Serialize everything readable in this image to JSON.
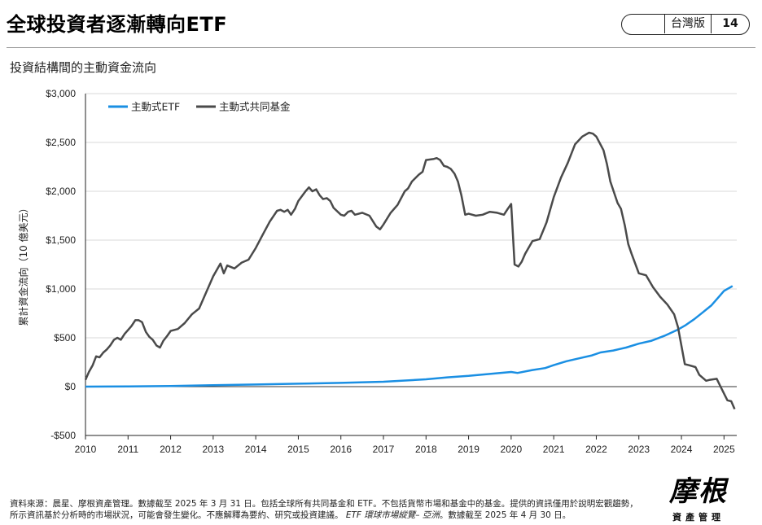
{
  "header": {
    "title": "全球投資者逐漸轉向ETF",
    "badge_label": "台灣版",
    "page_number": "14"
  },
  "subtitle": "投資結構間的主動資金流向",
  "footnote": {
    "line1": "資料來源：晨星、摩根資產管理。數據截至 2025 年 3 月 31 日。包括全球所有共同基金和 ETF。不包括貨幣市場和基金中的基金。提供的資訊僅用於說明宏觀趨勢，",
    "line2_a": "所示資訊基於分析時的市場狀況，可能會發生變化。不應解釋為要約、研究或投資建議。",
    "line2_em": "ETF 環球市場縱覽– 亞洲",
    "line2_b": "。數據截至 2025 年 4 月 30 日。"
  },
  "logo": {
    "main": "摩根",
    "sub": "資產管理"
  },
  "chart_data": {
    "type": "line",
    "ylabel": "累計資金流向（10 億美元）",
    "xlabel": "",
    "ylim": [
      -500,
      3000
    ],
    "xlim": [
      2010.0,
      2025.3
    ],
    "yticks": [
      -500,
      0,
      500,
      1000,
      1500,
      2000,
      2500,
      3000
    ],
    "ytick_labels": [
      "-$500",
      "$0",
      "$500",
      "$1,000",
      "$1,500",
      "$2,000",
      "$2,500",
      "$3,000"
    ],
    "xticks": [
      2010,
      2011,
      2012,
      2013,
      2014,
      2015,
      2016,
      2017,
      2018,
      2019,
      2020,
      2021,
      2022,
      2023,
      2024,
      2025
    ],
    "xtick_labels": [
      "2010",
      "2011",
      "2012",
      "2013",
      "2014",
      "2015",
      "2016",
      "2017",
      "2018",
      "2019",
      "2020",
      "2021",
      "2022",
      "2023",
      "2024",
      "2025"
    ],
    "grid": "horizontal",
    "legend_position": "top-left",
    "series": [
      {
        "name": "主動式ETF",
        "color": "#1a8fe3",
        "points": [
          [
            2010.0,
            0
          ],
          [
            2011.0,
            2
          ],
          [
            2012.0,
            7
          ],
          [
            2013.0,
            15
          ],
          [
            2014.0,
            22
          ],
          [
            2015.0,
            30
          ],
          [
            2016.0,
            38
          ],
          [
            2017.0,
            50
          ],
          [
            2018.0,
            75
          ],
          [
            2018.5,
            95
          ],
          [
            2019.0,
            110
          ],
          [
            2019.5,
            130
          ],
          [
            2020.0,
            150
          ],
          [
            2020.15,
            140
          ],
          [
            2020.5,
            170
          ],
          [
            2020.8,
            190
          ],
          [
            2021.0,
            220
          ],
          [
            2021.3,
            260
          ],
          [
            2021.6,
            290
          ],
          [
            2021.9,
            320
          ],
          [
            2022.1,
            350
          ],
          [
            2022.4,
            370
          ],
          [
            2022.7,
            400
          ],
          [
            2023.0,
            440
          ],
          [
            2023.3,
            470
          ],
          [
            2023.6,
            520
          ],
          [
            2023.9,
            580
          ],
          [
            2024.1,
            630
          ],
          [
            2024.3,
            690
          ],
          [
            2024.5,
            760
          ],
          [
            2024.7,
            830
          ],
          [
            2024.9,
            930
          ],
          [
            2025.0,
            980
          ],
          [
            2025.2,
            1030
          ]
        ]
      },
      {
        "name": "主動式共同基金",
        "color": "#4a4a4a",
        "points": [
          [
            2010.0,
            70
          ],
          [
            2010.08,
            150
          ],
          [
            2010.17,
            220
          ],
          [
            2010.25,
            310
          ],
          [
            2010.33,
            300
          ],
          [
            2010.42,
            350
          ],
          [
            2010.5,
            380
          ],
          [
            2010.58,
            420
          ],
          [
            2010.67,
            480
          ],
          [
            2010.75,
            500
          ],
          [
            2010.83,
            480
          ],
          [
            2010.92,
            540
          ],
          [
            2011.0,
            580
          ],
          [
            2011.08,
            620
          ],
          [
            2011.17,
            680
          ],
          [
            2011.25,
            680
          ],
          [
            2011.33,
            660
          ],
          [
            2011.42,
            560
          ],
          [
            2011.5,
            510
          ],
          [
            2011.58,
            480
          ],
          [
            2011.67,
            420
          ],
          [
            2011.75,
            400
          ],
          [
            2011.83,
            470
          ],
          [
            2011.92,
            520
          ],
          [
            2012.0,
            570
          ],
          [
            2012.17,
            590
          ],
          [
            2012.33,
            650
          ],
          [
            2012.5,
            740
          ],
          [
            2012.67,
            800
          ],
          [
            2012.83,
            960
          ],
          [
            2013.0,
            1130
          ],
          [
            2013.17,
            1260
          ],
          [
            2013.25,
            1160
          ],
          [
            2013.33,
            1240
          ],
          [
            2013.5,
            1210
          ],
          [
            2013.67,
            1270
          ],
          [
            2013.83,
            1300
          ],
          [
            2014.0,
            1420
          ],
          [
            2014.17,
            1560
          ],
          [
            2014.33,
            1690
          ],
          [
            2014.5,
            1800
          ],
          [
            2014.58,
            1810
          ],
          [
            2014.67,
            1790
          ],
          [
            2014.75,
            1810
          ],
          [
            2014.83,
            1760
          ],
          [
            2014.92,
            1820
          ],
          [
            2015.0,
            1900
          ],
          [
            2015.17,
            2000
          ],
          [
            2015.25,
            2040
          ],
          [
            2015.33,
            2000
          ],
          [
            2015.42,
            2020
          ],
          [
            2015.5,
            1960
          ],
          [
            2015.58,
            1920
          ],
          [
            2015.67,
            1930
          ],
          [
            2015.75,
            1900
          ],
          [
            2015.83,
            1830
          ],
          [
            2016.0,
            1760
          ],
          [
            2016.08,
            1750
          ],
          [
            2016.17,
            1790
          ],
          [
            2016.25,
            1800
          ],
          [
            2016.33,
            1760
          ],
          [
            2016.5,
            1780
          ],
          [
            2016.67,
            1750
          ],
          [
            2016.83,
            1640
          ],
          [
            2016.92,
            1610
          ],
          [
            2017.0,
            1660
          ],
          [
            2017.17,
            1780
          ],
          [
            2017.33,
            1860
          ],
          [
            2017.5,
            2000
          ],
          [
            2017.58,
            2030
          ],
          [
            2017.67,
            2100
          ],
          [
            2017.83,
            2170
          ],
          [
            2017.92,
            2200
          ],
          [
            2018.0,
            2320
          ],
          [
            2018.17,
            2330
          ],
          [
            2018.25,
            2340
          ],
          [
            2018.33,
            2320
          ],
          [
            2018.42,
            2260
          ],
          [
            2018.5,
            2250
          ],
          [
            2018.58,
            2230
          ],
          [
            2018.67,
            2180
          ],
          [
            2018.75,
            2100
          ],
          [
            2018.83,
            1960
          ],
          [
            2018.92,
            1760
          ],
          [
            2019.0,
            1770
          ],
          [
            2019.17,
            1750
          ],
          [
            2019.33,
            1760
          ],
          [
            2019.5,
            1790
          ],
          [
            2019.67,
            1780
          ],
          [
            2019.83,
            1760
          ],
          [
            2019.92,
            1820
          ],
          [
            2020.0,
            1870
          ],
          [
            2020.08,
            1250
          ],
          [
            2020.17,
            1230
          ],
          [
            2020.25,
            1280
          ],
          [
            2020.33,
            1360
          ],
          [
            2020.5,
            1490
          ],
          [
            2020.67,
            1510
          ],
          [
            2020.83,
            1680
          ],
          [
            2021.0,
            1940
          ],
          [
            2021.17,
            2140
          ],
          [
            2021.33,
            2290
          ],
          [
            2021.5,
            2480
          ],
          [
            2021.67,
            2560
          ],
          [
            2021.83,
            2600
          ],
          [
            2021.92,
            2590
          ],
          [
            2022.0,
            2560
          ],
          [
            2022.17,
            2420
          ],
          [
            2022.25,
            2280
          ],
          [
            2022.33,
            2100
          ],
          [
            2022.5,
            1880
          ],
          [
            2022.58,
            1820
          ],
          [
            2022.67,
            1650
          ],
          [
            2022.75,
            1460
          ],
          [
            2022.83,
            1360
          ],
          [
            2023.0,
            1160
          ],
          [
            2023.17,
            1140
          ],
          [
            2023.33,
            1020
          ],
          [
            2023.5,
            920
          ],
          [
            2023.67,
            840
          ],
          [
            2023.83,
            740
          ],
          [
            2023.92,
            610
          ],
          [
            2024.0,
            420
          ],
          [
            2024.08,
            230
          ],
          [
            2024.17,
            220
          ],
          [
            2024.33,
            200
          ],
          [
            2024.42,
            120
          ],
          [
            2024.58,
            60
          ],
          [
            2024.67,
            70
          ],
          [
            2024.83,
            80
          ],
          [
            2024.92,
            0
          ],
          [
            2025.0,
            -70
          ],
          [
            2025.08,
            -140
          ],
          [
            2025.17,
            -150
          ],
          [
            2025.25,
            -230
          ]
        ]
      }
    ]
  }
}
